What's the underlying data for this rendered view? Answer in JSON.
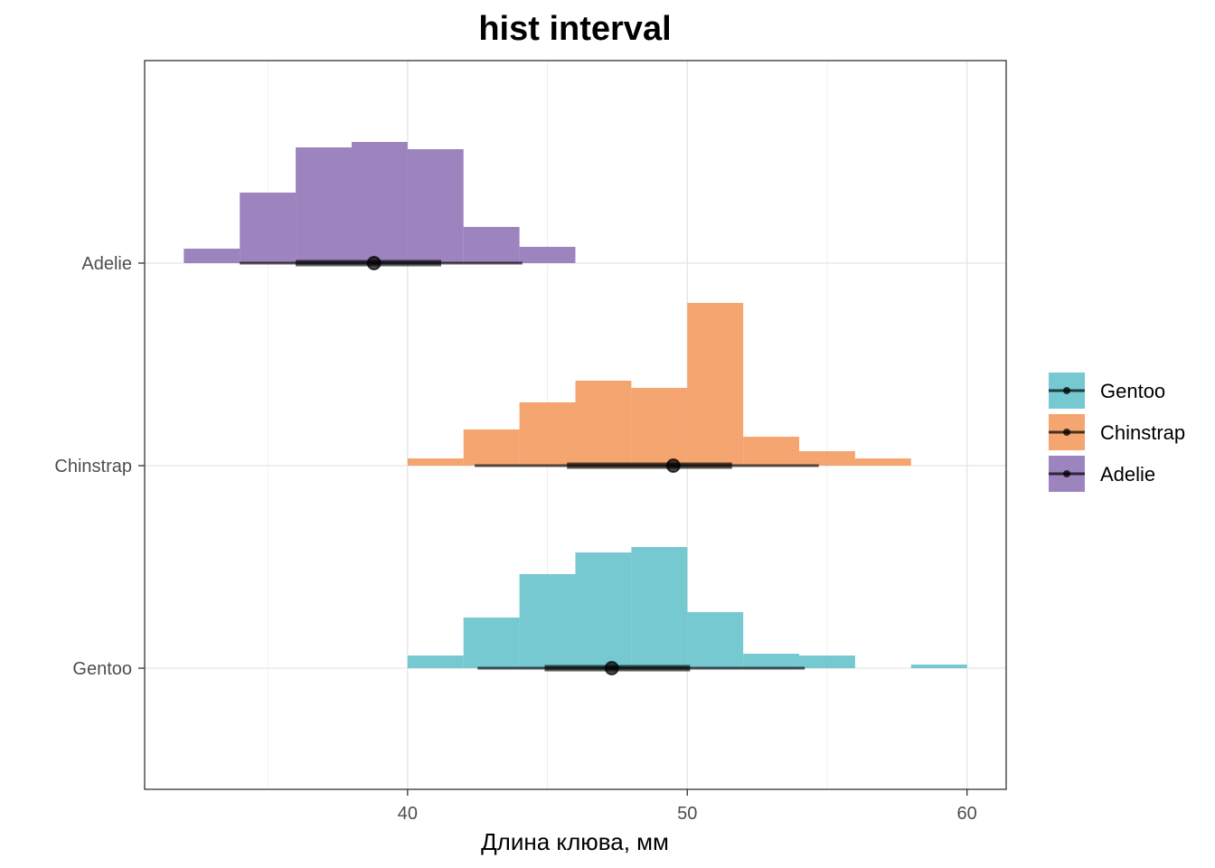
{
  "chart_data": {
    "type": "histogram-interval",
    "title": "hist interval",
    "xlabel": "Длина клюва, мм",
    "ylabel": "",
    "xlim": [
      30.6,
      61.4
    ],
    "xticks": [
      40,
      50,
      60
    ],
    "grid": true,
    "legend_position": "right",
    "categories": [
      "Adelie",
      "Chinstrap",
      "Gentoo"
    ],
    "legend_order": [
      "Gentoo",
      "Chinstrap",
      "Adelie"
    ],
    "series": [
      {
        "name": "Adelie",
        "color": "#8E73B5",
        "bins": [
          {
            "x0": 32,
            "x1": 34,
            "h": 0.08
          },
          {
            "x0": 34,
            "x1": 36,
            "h": 0.39
          },
          {
            "x0": 36,
            "x1": 38,
            "h": 0.64
          },
          {
            "x0": 38,
            "x1": 40,
            "h": 0.67
          },
          {
            "x0": 40,
            "x1": 42,
            "h": 0.63
          },
          {
            "x0": 42,
            "x1": 44,
            "h": 0.2
          },
          {
            "x0": 44,
            "x1": 46,
            "h": 0.09
          }
        ],
        "point": 38.8,
        "interval_66": [
          36.0,
          41.2
        ],
        "interval_95": [
          34.0,
          44.1
        ]
      },
      {
        "name": "Chinstrap",
        "color": "#F4995B",
        "bins": [
          {
            "x0": 40,
            "x1": 42,
            "h": 0.04
          },
          {
            "x0": 42,
            "x1": 44,
            "h": 0.2
          },
          {
            "x0": 44,
            "x1": 46,
            "h": 0.35
          },
          {
            "x0": 46,
            "x1": 48,
            "h": 0.47
          },
          {
            "x0": 48,
            "x1": 50,
            "h": 0.43
          },
          {
            "x0": 50,
            "x1": 52,
            "h": 0.9
          },
          {
            "x0": 52,
            "x1": 54,
            "h": 0.16
          },
          {
            "x0": 54,
            "x1": 56,
            "h": 0.08
          },
          {
            "x0": 56,
            "x1": 58,
            "h": 0.04
          }
        ],
        "point": 49.5,
        "interval_66": [
          45.7,
          51.6
        ],
        "interval_95": [
          42.4,
          54.7
        ]
      },
      {
        "name": "Gentoo",
        "color": "#63C2CB",
        "bins": [
          {
            "x0": 40,
            "x1": 42,
            "h": 0.07
          },
          {
            "x0": 42,
            "x1": 44,
            "h": 0.28
          },
          {
            "x0": 44,
            "x1": 46,
            "h": 0.52
          },
          {
            "x0": 46,
            "x1": 48,
            "h": 0.64
          },
          {
            "x0": 48,
            "x1": 50,
            "h": 0.67
          },
          {
            "x0": 50,
            "x1": 52,
            "h": 0.31
          },
          {
            "x0": 52,
            "x1": 54,
            "h": 0.08
          },
          {
            "x0": 54,
            "x1": 56,
            "h": 0.07
          },
          {
            "x0": 58,
            "x1": 60,
            "h": 0.02
          }
        ],
        "point": 47.3,
        "interval_66": [
          44.9,
          50.1
        ],
        "interval_95": [
          42.5,
          54.2
        ]
      }
    ]
  }
}
